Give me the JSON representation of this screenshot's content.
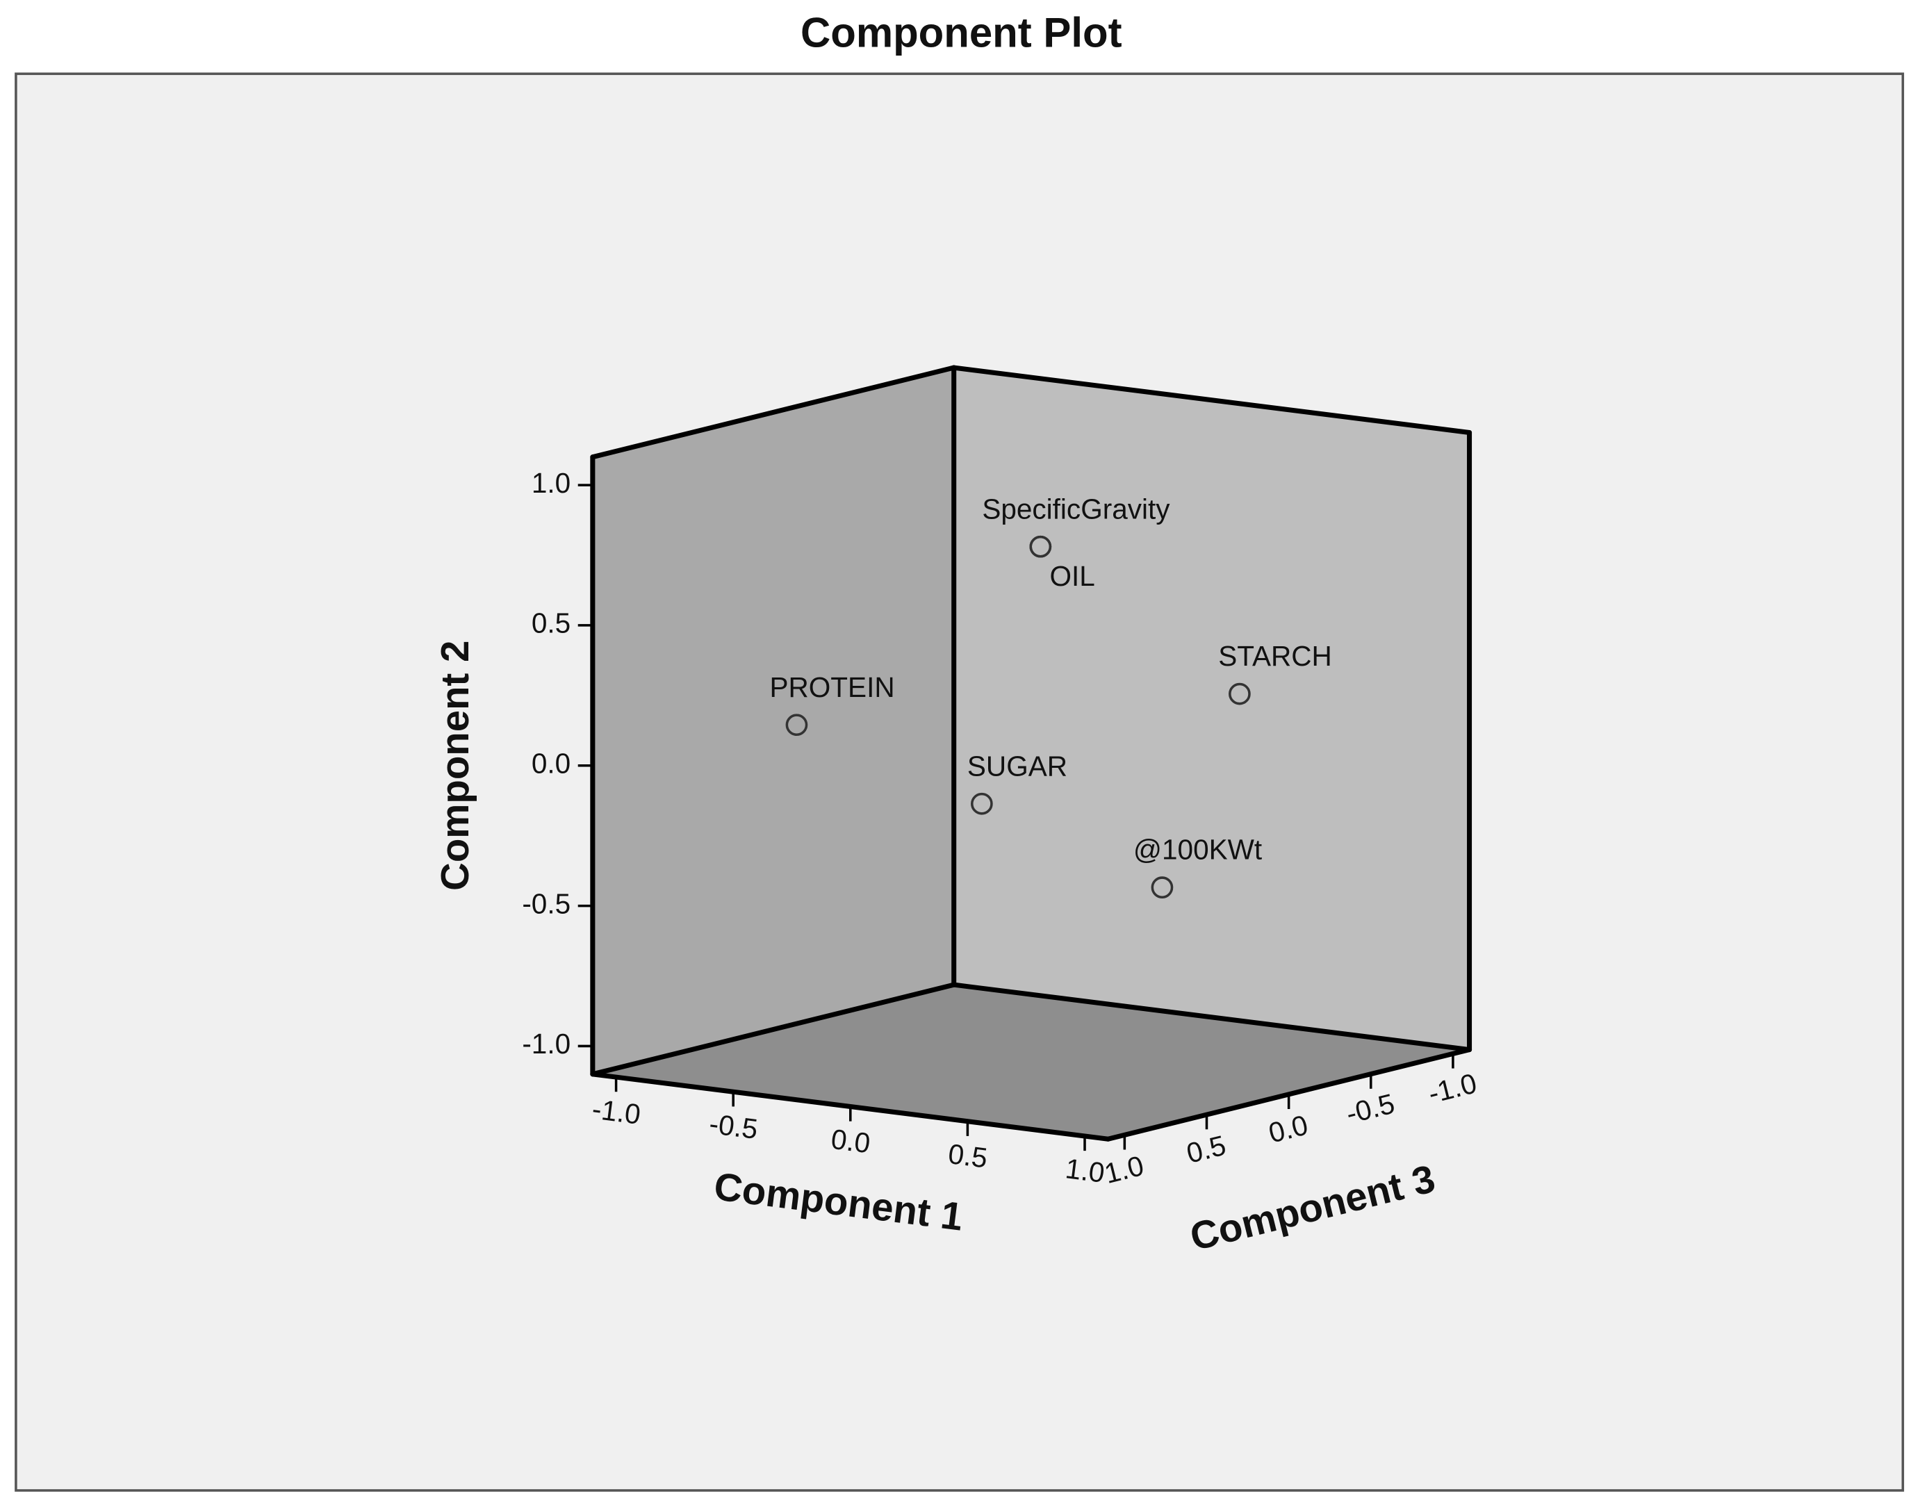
{
  "chart_data": {
    "type": "scatter3d",
    "title": "Component Plot",
    "xlabel": "Component 1",
    "ylabel": "Component 2",
    "zlabel": "Component 3",
    "labels": [
      "SpecificGravity",
      "OIL",
      "PROTEIN",
      "STARCH",
      "SUGAR",
      "@100KWt"
    ],
    "x": [
      -0.38,
      -0.38,
      -0.86,
      0.68,
      -0.14,
      0.91
    ],
    "y": [
      0.61,
      0.61,
      0.04,
      0.24,
      -0.18,
      -0.31
    ],
    "z": [
      -0.6,
      -0.6,
      0.2,
      -0.3,
      0.1,
      0.5
    ],
    "xlim": [
      -1.1,
      1.1
    ],
    "ylim": [
      -1.1,
      1.1
    ],
    "zlim": [
      -1.1,
      1.1
    ],
    "xticks": [
      {
        "value": -1,
        "label": "-1.0"
      },
      -0.5,
      {
        "value": 0,
        "label": "0.0"
      },
      0.5,
      {
        "value": 1,
        "label": "1.0"
      }
    ],
    "yticks": [
      {
        "value": -1,
        "label": "-1.0"
      },
      -0.5,
      {
        "value": 0,
        "label": "0.0"
      },
      0.5,
      {
        "value": 1,
        "label": "1.0"
      }
    ],
    "zticks": [
      {
        "value": -1,
        "label": "-1.0"
      },
      -0.5,
      {
        "value": 0,
        "label": "0.0"
      },
      0.5,
      {
        "value": 1,
        "label": "1.0"
      }
    ]
  }
}
